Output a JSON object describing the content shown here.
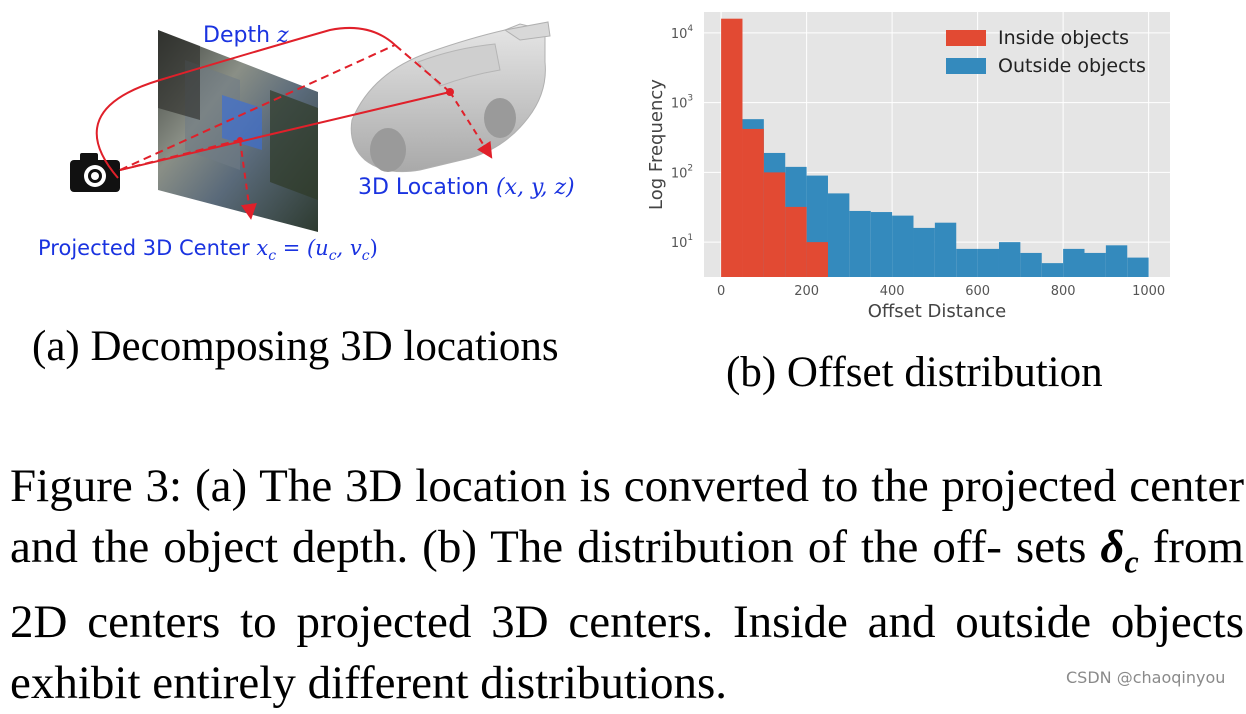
{
  "panel_a": {
    "depth_label": "Depth ",
    "depth_var": "z",
    "location_label": "3D Location ",
    "location_math": "(x, y, z)",
    "center_label": "Projected 3D Center ",
    "center_math": "x",
    "center_sub": "c",
    "center_math_rest": " = (u",
    "center_sub_u": "c",
    "center_comma": ", v",
    "center_sub_v": "c",
    "center_close": ")",
    "subcaption": "(a) Decomposing 3D locations",
    "colors": {
      "label_blue": "#1a33e0",
      "arrow_red": "#e0202a",
      "car_gray": "#c9c9c9"
    },
    "icons": [
      "camera-icon",
      "car-illustration",
      "image-plane"
    ]
  },
  "panel_b": {
    "subcaption": "(b) Offset distribution",
    "chart_data": {
      "type": "bar",
      "title": "",
      "xlabel": "Offset Distance",
      "ylabel": "Log Frequency",
      "xticks": [
        "0",
        "200",
        "400",
        "600",
        "800",
        "1000"
      ],
      "yticks": [
        "10",
        "10",
        "10",
        "10"
      ],
      "ytick_exponents": [
        "1",
        "2",
        "3",
        "4"
      ],
      "xlim": [
        -40,
        1050
      ],
      "ylim_log10": [
        0.5,
        4.3
      ],
      "yscale": "log",
      "grid": true,
      "legend_position": "top-right",
      "bin_width": 50,
      "bin_starts": [
        0,
        50,
        100,
        150,
        200,
        250,
        300,
        350,
        400,
        450,
        500,
        550,
        600,
        650,
        700,
        750,
        800,
        850,
        900,
        950
      ],
      "series": [
        {
          "name": "Inside objects",
          "color": "#e24a33",
          "values": [
            16000,
            420,
            100,
            32,
            10,
            null,
            null,
            null,
            null,
            null,
            null,
            null,
            null,
            null,
            null,
            null,
            null,
            null,
            null,
            null
          ]
        },
        {
          "name": "Outside objects",
          "color": "#348abd",
          "values": [
            null,
            580,
            190,
            120,
            90,
            50,
            28,
            27,
            24,
            16,
            19,
            8,
            8,
            10,
            7,
            5,
            8,
            7,
            9,
            6
          ]
        }
      ]
    }
  },
  "caption": {
    "prefix": "Figure 3: (a) The 3D location is converted to the projected center and the object depth. (b) The distribution of the off- sets ",
    "delta": "δ",
    "delta_sub": "c",
    "suffix": " from 2D centers to projected 3D centers. Inside and outside objects exhibit entirely different distributions."
  },
  "watermark": "CSDN @chaoqinyou"
}
